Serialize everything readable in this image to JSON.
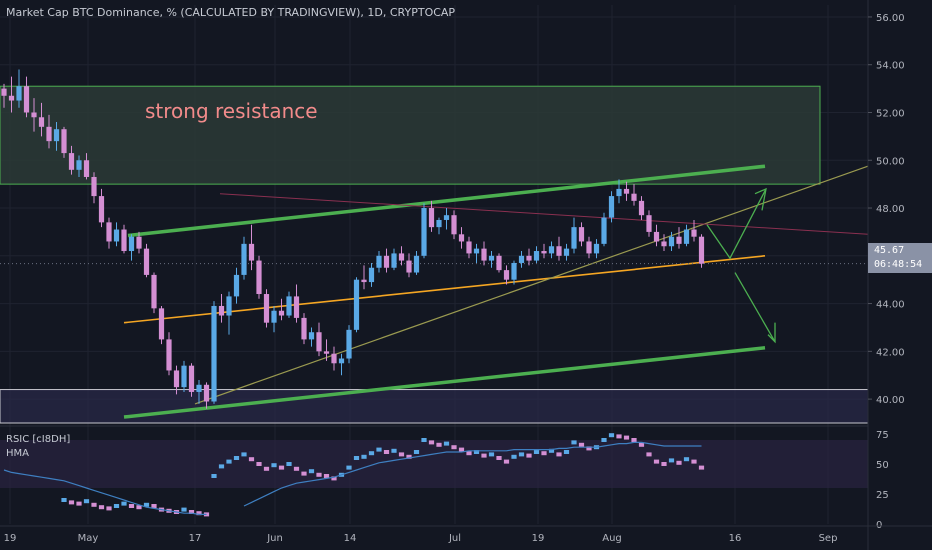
{
  "header": {
    "title": "Market Cap BTC Dominance, % (CALCULATED BY TRADINGVIEW), 1D, CRYPTOCAP"
  },
  "indicator": {
    "name1": "RSIC [cI8DH]",
    "name2": "HMA"
  },
  "price_badge": {
    "price": "45.67",
    "countdown": "06:48:54"
  },
  "annotation": {
    "text": "strong resistance"
  },
  "colors": {
    "up": "#5aa9e6",
    "down": "#d48fd3",
    "green_line": "#4caf50",
    "orange_line": "#f5a623",
    "zone_fill": "#2b3a36",
    "rsi_line": "#3e7fc1"
  },
  "chart_data": {
    "type": "candlestick",
    "title": "Market Cap BTC Dominance, % (CALCULATED BY TRADINGVIEW), 1D, CRYPTOCAP",
    "x_ticks": [
      "19",
      "May",
      "17",
      "Jun",
      "14",
      "Jul",
      "19",
      "Aug",
      "16",
      "Sep"
    ],
    "y_ticks": [
      "40.00",
      "42.00",
      "44.00",
      "46.00",
      "48.00",
      "50.00",
      "52.00",
      "54.00",
      "56.00"
    ],
    "ylim": [
      39.0,
      56.5
    ],
    "rsi_ticks": [
      "0",
      "25",
      "50",
      "75"
    ],
    "rsi_lim": [
      0,
      80
    ],
    "last_price": 45.67,
    "candles": [
      [
        53.0,
        53.2,
        52.2,
        52.7
      ],
      [
        52.7,
        53.5,
        52.0,
        52.5
      ],
      [
        52.5,
        53.8,
        52.2,
        53.1
      ],
      [
        53.1,
        53.5,
        51.8,
        52.0
      ],
      [
        52.0,
        52.6,
        51.2,
        51.8
      ],
      [
        51.8,
        52.4,
        51.0,
        51.4
      ],
      [
        51.4,
        51.9,
        50.5,
        50.8
      ],
      [
        50.8,
        51.6,
        50.4,
        51.3
      ],
      [
        51.3,
        51.4,
        50.1,
        50.3
      ],
      [
        50.3,
        50.6,
        49.4,
        49.6
      ],
      [
        49.6,
        50.2,
        49.3,
        50.0
      ],
      [
        50.0,
        50.3,
        49.2,
        49.3
      ],
      [
        49.3,
        49.5,
        48.2,
        48.5
      ],
      [
        48.5,
        48.8,
        47.2,
        47.4
      ],
      [
        47.4,
        47.6,
        46.3,
        46.6
      ],
      [
        46.6,
        47.4,
        46.4,
        47.1
      ],
      [
        47.1,
        47.3,
        46.1,
        46.2
      ],
      [
        46.2,
        46.9,
        45.8,
        46.8
      ],
      [
        46.8,
        47.0,
        46.1,
        46.3
      ],
      [
        46.3,
        46.5,
        45.1,
        45.2
      ],
      [
        45.2,
        45.3,
        43.6,
        43.8
      ],
      [
        43.8,
        43.9,
        42.3,
        42.5
      ],
      [
        42.5,
        42.8,
        41.0,
        41.2
      ],
      [
        41.2,
        41.4,
        40.2,
        40.5
      ],
      [
        40.5,
        41.6,
        40.3,
        41.4
      ],
      [
        41.4,
        41.5,
        40.1,
        40.3
      ],
      [
        40.3,
        40.8,
        39.8,
        40.6
      ],
      [
        40.6,
        40.7,
        39.6,
        39.9
      ],
      [
        39.9,
        44.1,
        39.8,
        43.9
      ],
      [
        43.9,
        44.4,
        43.2,
        43.5
      ],
      [
        43.5,
        44.5,
        42.7,
        44.3
      ],
      [
        44.3,
        45.5,
        44.0,
        45.2
      ],
      [
        45.2,
        46.8,
        45.0,
        46.5
      ],
      [
        46.5,
        47.3,
        45.4,
        45.8
      ],
      [
        45.8,
        46.0,
        44.2,
        44.4
      ],
      [
        44.4,
        44.6,
        43.0,
        43.2
      ],
      [
        43.2,
        43.9,
        42.8,
        43.7
      ],
      [
        43.7,
        44.2,
        43.3,
        43.5
      ],
      [
        43.5,
        44.5,
        43.4,
        44.3
      ],
      [
        44.3,
        44.8,
        43.2,
        43.4
      ],
      [
        43.4,
        43.6,
        42.3,
        42.5
      ],
      [
        42.5,
        43.0,
        42.2,
        42.8
      ],
      [
        42.8,
        43.2,
        41.8,
        42.0
      ],
      [
        42.0,
        42.5,
        41.6,
        41.9
      ],
      [
        41.9,
        42.2,
        41.2,
        41.5
      ],
      [
        41.5,
        41.9,
        41.0,
        41.7
      ],
      [
        41.7,
        43.1,
        41.5,
        42.9
      ],
      [
        42.9,
        45.1,
        42.8,
        45.0
      ],
      [
        45.0,
        45.6,
        44.6,
        44.9
      ],
      [
        44.9,
        45.7,
        44.7,
        45.5
      ],
      [
        45.5,
        46.2,
        45.3,
        46.0
      ],
      [
        46.0,
        46.3,
        45.3,
        45.5
      ],
      [
        45.5,
        46.3,
        45.4,
        46.1
      ],
      [
        46.1,
        46.4,
        45.6,
        45.8
      ],
      [
        45.8,
        46.1,
        45.1,
        45.3
      ],
      [
        45.3,
        46.2,
        45.2,
        46.0
      ],
      [
        46.0,
        48.2,
        45.9,
        48.0
      ],
      [
        48.0,
        48.3,
        47.0,
        47.2
      ],
      [
        47.2,
        47.6,
        46.9,
        47.5
      ],
      [
        47.5,
        48.0,
        47.1,
        47.7
      ],
      [
        47.7,
        47.9,
        46.7,
        46.9
      ],
      [
        46.9,
        47.2,
        46.3,
        46.6
      ],
      [
        46.6,
        46.8,
        45.9,
        46.1
      ],
      [
        46.1,
        46.5,
        45.7,
        46.3
      ],
      [
        46.3,
        46.6,
        45.6,
        45.8
      ],
      [
        45.8,
        46.2,
        45.5,
        46.0
      ],
      [
        46.0,
        46.1,
        45.3,
        45.4
      ],
      [
        45.4,
        45.6,
        44.8,
        45.0
      ],
      [
        45.0,
        45.8,
        44.8,
        45.7
      ],
      [
        45.7,
        46.2,
        45.5,
        46.0
      ],
      [
        46.0,
        46.3,
        45.6,
        45.8
      ],
      [
        45.8,
        46.4,
        45.7,
        46.2
      ],
      [
        46.2,
        46.5,
        45.9,
        46.1
      ],
      [
        46.1,
        46.6,
        45.9,
        46.4
      ],
      [
        46.4,
        46.8,
        45.8,
        46.0
      ],
      [
        46.0,
        46.5,
        45.8,
        46.3
      ],
      [
        46.3,
        47.6,
        46.1,
        47.2
      ],
      [
        47.2,
        47.4,
        46.4,
        46.6
      ],
      [
        46.6,
        46.8,
        45.9,
        46.1
      ],
      [
        46.1,
        46.7,
        45.9,
        46.5
      ],
      [
        46.5,
        47.8,
        46.4,
        47.6
      ],
      [
        47.6,
        48.7,
        47.4,
        48.5
      ],
      [
        48.5,
        49.2,
        48.2,
        48.8
      ],
      [
        48.8,
        49.1,
        48.3,
        48.6
      ],
      [
        48.6,
        49.0,
        48.1,
        48.3
      ],
      [
        48.3,
        48.5,
        47.5,
        47.7
      ],
      [
        47.7,
        47.9,
        46.8,
        47.0
      ],
      [
        47.0,
        47.3,
        46.4,
        46.6
      ],
      [
        46.6,
        46.9,
        46.2,
        46.4
      ],
      [
        46.4,
        47.0,
        46.2,
        46.8
      ],
      [
        46.8,
        47.2,
        46.3,
        46.5
      ],
      [
        46.5,
        47.3,
        46.4,
        47.1
      ],
      [
        47.1,
        47.5,
        46.6,
        46.8
      ],
      [
        46.8,
        46.9,
        45.5,
        45.67
      ]
    ],
    "rsi": [
      null,
      null,
      null,
      null,
      null,
      null,
      null,
      null,
      20,
      18,
      17,
      19,
      16,
      14,
      13,
      15,
      17,
      15,
      14,
      16,
      15,
      12,
      11,
      10,
      12,
      10,
      9,
      8,
      40,
      48,
      52,
      55,
      58,
      54,
      50,
      46,
      49,
      47,
      50,
      46,
      42,
      44,
      41,
      40,
      38,
      41,
      47,
      55,
      56,
      59,
      62,
      60,
      61,
      58,
      56,
      60,
      70,
      68,
      66,
      67,
      64,
      62,
      59,
      60,
      57,
      58,
      55,
      52,
      56,
      58,
      57,
      60,
      59,
      61,
      58,
      60,
      68,
      66,
      63,
      64,
      70,
      74,
      73,
      72,
      70,
      66,
      58,
      52,
      50,
      53,
      51,
      54,
      52,
      47
    ],
    "rsi_ma": [
      null,
      null,
      null,
      null,
      null,
      null,
      null,
      null,
      null,
      null,
      null,
      null,
      null,
      null,
      null,
      null,
      null,
      null,
      null,
      null,
      null,
      null,
      null,
      null,
      null,
      null,
      null,
      null,
      null,
      null,
      null,
      null,
      15,
      18,
      21,
      24,
      27,
      30,
      32,
      34,
      35,
      36,
      37,
      38,
      39,
      41,
      43,
      45,
      47,
      49,
      51,
      52,
      53,
      54,
      55,
      56,
      57,
      58,
      59,
      60,
      60,
      60,
      61,
      61,
      61,
      61,
      61,
      61,
      62,
      62,
      62,
      62,
      62,
      62,
      63,
      63,
      64,
      64,
      64,
      64,
      65,
      66,
      67,
      67,
      68,
      68,
      67,
      66,
      65,
      65,
      65,
      65,
      65,
      65
    ]
  }
}
